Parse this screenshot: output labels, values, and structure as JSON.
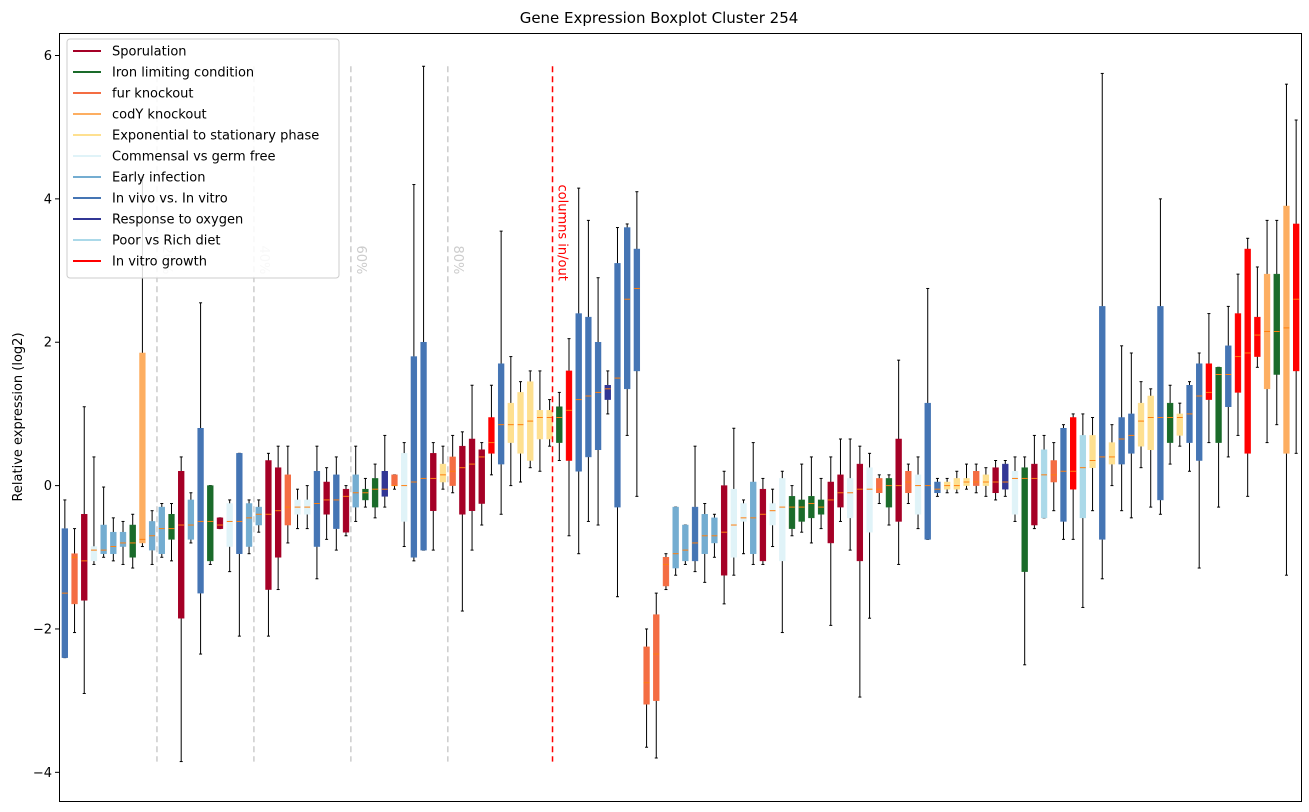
{
  "chart_data": {
    "type": "boxplot",
    "title": "Gene Expression Boxplot Cluster 254",
    "xlabel": "",
    "ylabel": "Relative expression (log2)",
    "ylim": [
      -4.4,
      6.3
    ],
    "yticks": [
      -4,
      -2,
      0,
      2,
      4,
      6
    ],
    "xticks_visible": false,
    "grid": false,
    "legend_placement": "top-left",
    "colors": {
      "median": "#ff7f0e",
      "whisker": "#000000",
      "guide": "#cccccc",
      "cut": "#ff0000"
    },
    "legend": [
      {
        "label": "Sporulation",
        "color": "#a50026"
      },
      {
        "label": "Iron limiting condition",
        "color": "#1a6b2a"
      },
      {
        "label": "fur knockout",
        "color": "#f46d43"
      },
      {
        "label": "codY knockout",
        "color": "#fdae61"
      },
      {
        "label": "Exponential to stationary phase",
        "color": "#fee090"
      },
      {
        "label": "Commensal vs germ free",
        "color": "#e0f3f8"
      },
      {
        "label": "Early infection",
        "color": "#74add1"
      },
      {
        "label": "In vivo vs. In vitro",
        "color": "#4575b4"
      },
      {
        "label": "Response to oxygen",
        "color": "#313695"
      },
      {
        "label": "Poor vs Rich diet",
        "color": "#abd9e9"
      },
      {
        "label": "In vitro growth",
        "color": "#ff0000"
      }
    ],
    "percentile_markers": [
      {
        "label": "20%",
        "position": 9.5
      },
      {
        "label": "40%",
        "position": 19.5
      },
      {
        "label": "60%",
        "position": 29.5
      },
      {
        "label": "80%",
        "position": 39.5
      }
    ],
    "cut_marker": {
      "label": "columns in/out",
      "position": 50.3
    },
    "boxes": [
      {
        "c": 7,
        "q1": -2.4,
        "med": -1.5,
        "q3": -0.6,
        "lo": -2.4,
        "hi": -0.2
      },
      {
        "c": 2,
        "q1": -1.65,
        "med": -1.0,
        "q3": -0.95,
        "lo": -2.05,
        "hi": -0.6
      },
      {
        "c": 0,
        "q1": -1.6,
        "med": -1.05,
        "q3": -0.4,
        "lo": -2.9,
        "hi": 1.1
      },
      {
        "c": 5,
        "q1": -1.05,
        "med": -0.9,
        "q3": -0.85,
        "lo": -1.1,
        "hi": 0.4
      },
      {
        "c": 6,
        "q1": -0.95,
        "med": -0.9,
        "q3": -0.55,
        "lo": -1.0,
        "hi": -0.02
      },
      {
        "c": 6,
        "q1": -0.95,
        "med": -0.85,
        "q3": -0.65,
        "lo": -1.05,
        "hi": -0.45
      },
      {
        "c": 6,
        "q1": -0.85,
        "med": -0.8,
        "q3": -0.65,
        "lo": -1.1,
        "hi": -0.5
      },
      {
        "c": 1,
        "q1": -1.0,
        "med": -0.8,
        "q3": -0.55,
        "lo": -1.15,
        "hi": -0.4
      },
      {
        "c": 3,
        "q1": -0.8,
        "med": -0.75,
        "q3": 1.85,
        "lo": -0.85,
        "hi": 4.3
      },
      {
        "c": 6,
        "q1": -0.9,
        "med": -0.7,
        "q3": -0.5,
        "lo": -1.1,
        "hi": -0.35
      },
      {
        "c": 6,
        "q1": -0.95,
        "med": -0.6,
        "q3": -0.3,
        "lo": -1.0,
        "hi": -0.25
      },
      {
        "c": 1,
        "q1": -0.75,
        "med": -0.6,
        "q3": -0.4,
        "lo": -1.05,
        "hi": -0.25
      },
      {
        "c": 0,
        "q1": -1.85,
        "med": -0.55,
        "q3": 0.2,
        "lo": -3.85,
        "hi": 0.4
      },
      {
        "c": 6,
        "q1": -0.75,
        "med": -0.55,
        "q3": -0.2,
        "lo": -0.8,
        "hi": -0.1
      },
      {
        "c": 7,
        "q1": -1.5,
        "med": -0.5,
        "q3": 0.8,
        "lo": -2.35,
        "hi": 2.55
      },
      {
        "c": 1,
        "q1": -1.05,
        "med": -0.5,
        "q3": -0.0,
        "lo": -1.1,
        "hi": 0.0
      },
      {
        "c": 0,
        "q1": -0.6,
        "med": -0.55,
        "q3": -0.45,
        "lo": -0.6,
        "hi": -0.45
      },
      {
        "c": 5,
        "q1": -0.85,
        "med": -0.5,
        "q3": -0.25,
        "lo": -1.2,
        "hi": -0.2
      },
      {
        "c": 7,
        "q1": -0.95,
        "med": -0.5,
        "q3": 0.45,
        "lo": -2.1,
        "hi": 0.45
      },
      {
        "c": 6,
        "q1": -0.85,
        "med": -0.45,
        "q3": -0.25,
        "lo": -0.95,
        "hi": -0.2
      },
      {
        "c": 6,
        "q1": -0.55,
        "med": -0.4,
        "q3": -0.3,
        "lo": -0.65,
        "hi": -0.2
      },
      {
        "c": 0,
        "q1": -1.45,
        "med": -0.4,
        "q3": 0.35,
        "lo": -2.1,
        "hi": 0.45
      },
      {
        "c": 0,
        "q1": -1.0,
        "med": -0.35,
        "q3": 0.25,
        "lo": -1.45,
        "hi": 0.55
      },
      {
        "c": 2,
        "q1": -0.55,
        "med": -0.3,
        "q3": 0.15,
        "lo": -0.8,
        "hi": 0.55
      },
      {
        "c": 5,
        "q1": -0.4,
        "med": -0.3,
        "q3": -0.2,
        "lo": -0.6,
        "hi": -0.05
      },
      {
        "c": 5,
        "q1": -0.4,
        "med": -0.3,
        "q3": -0.2,
        "lo": -0.6,
        "hi": 0.0
      },
      {
        "c": 7,
        "q1": -0.85,
        "med": -0.25,
        "q3": 0.2,
        "lo": -1.3,
        "hi": 0.55
      },
      {
        "c": 0,
        "q1": -0.4,
        "med": -0.2,
        "q3": 0.05,
        "lo": -0.75,
        "hi": 0.25
      },
      {
        "c": 7,
        "q1": -0.6,
        "med": -0.2,
        "q3": 0.15,
        "lo": -0.9,
        "hi": 0.4
      },
      {
        "c": 0,
        "q1": -0.65,
        "med": -0.15,
        "q3": -0.05,
        "lo": -0.7,
        "hi": 0.0
      },
      {
        "c": 6,
        "q1": -0.3,
        "med": -0.1,
        "q3": 0.15,
        "lo": -0.5,
        "hi": 0.55
      },
      {
        "c": 1,
        "q1": -0.2,
        "med": -0.1,
        "q3": -0.05,
        "lo": -0.3,
        "hi": 0.1
      },
      {
        "c": 1,
        "q1": -0.3,
        "med": -0.05,
        "q3": 0.1,
        "lo": -0.45,
        "hi": 0.3
      },
      {
        "c": 8,
        "q1": -0.15,
        "med": -0.05,
        "q3": 0.2,
        "lo": -0.3,
        "hi": 0.7
      },
      {
        "c": 2,
        "q1": -0.0,
        "med": 0.0,
        "q3": 0.15,
        "lo": -0.05,
        "hi": 0.15
      },
      {
        "c": 5,
        "q1": -0.5,
        "med": 0.0,
        "q3": 0.45,
        "lo": -0.85,
        "hi": 0.6
      },
      {
        "c": 7,
        "q1": -1.0,
        "med": 0.05,
        "q3": 1.8,
        "lo": -1.05,
        "hi": 4.2
      },
      {
        "c": 7,
        "q1": -0.9,
        "med": 0.1,
        "q3": 2.0,
        "lo": -0.9,
        "hi": 5.85
      },
      {
        "c": 0,
        "q1": -0.35,
        "med": 0.1,
        "q3": 0.45,
        "lo": -0.9,
        "hi": 0.6
      },
      {
        "c": 4,
        "q1": 0.05,
        "med": 0.15,
        "q3": 0.3,
        "lo": -0.05,
        "hi": 0.55
      },
      {
        "c": 2,
        "q1": 0.0,
        "med": 0.2,
        "q3": 0.4,
        "lo": -0.1,
        "hi": 0.7
      },
      {
        "c": 0,
        "q1": -0.4,
        "med": 0.25,
        "q3": 0.55,
        "lo": -1.75,
        "hi": 0.75
      },
      {
        "c": 0,
        "q1": -0.35,
        "med": 0.3,
        "q3": 0.65,
        "lo": -0.9,
        "hi": 1.4
      },
      {
        "c": 0,
        "q1": -0.25,
        "med": 0.4,
        "q3": 0.5,
        "lo": -0.55,
        "hi": 0.6
      },
      {
        "c": 10,
        "q1": 0.45,
        "med": 0.6,
        "q3": 0.95,
        "lo": 0.15,
        "hi": 1.4
      },
      {
        "c": 7,
        "q1": 0.3,
        "med": 0.85,
        "q3": 1.7,
        "lo": -0.4,
        "hi": 3.55
      },
      {
        "c": 4,
        "q1": 0.6,
        "med": 0.85,
        "q3": 1.15,
        "lo": 0.0,
        "hi": 1.8
      },
      {
        "c": 4,
        "q1": 0.45,
        "med": 0.85,
        "q3": 1.3,
        "lo": 0.05,
        "hi": 1.45
      },
      {
        "c": 4,
        "q1": 0.35,
        "med": 0.9,
        "q3": 1.45,
        "lo": 0.25,
        "hi": 1.6
      },
      {
        "c": 4,
        "q1": 0.65,
        "med": 0.95,
        "q3": 1.05,
        "lo": 0.2,
        "hi": 1.6
      },
      {
        "c": 4,
        "q1": 0.65,
        "med": 0.95,
        "q3": 1.05,
        "lo": 0.55,
        "hi": 1.2
      },
      {
        "c": 1,
        "q1": 0.6,
        "med": 0.95,
        "q3": 1.1,
        "lo": 0.35,
        "hi": 1.3
      },
      {
        "c": 10,
        "q1": 0.35,
        "med": 1.05,
        "q3": 1.6,
        "lo": -0.7,
        "hi": 2.05
      },
      {
        "c": 7,
        "q1": 0.2,
        "med": 1.2,
        "q3": 2.4,
        "lo": -0.95,
        "hi": 4.15
      },
      {
        "c": 7,
        "q1": 0.4,
        "med": 1.25,
        "q3": 2.35,
        "lo": -0.5,
        "hi": 3.7
      },
      {
        "c": 7,
        "q1": 0.5,
        "med": 1.3,
        "q3": 2.0,
        "lo": -0.55,
        "hi": 2.9
      },
      {
        "c": 8,
        "q1": 1.2,
        "med": 1.35,
        "q3": 1.4,
        "lo": 1.0,
        "hi": 1.6
      },
      {
        "c": 7,
        "q1": -0.3,
        "med": 1.5,
        "q3": 3.1,
        "lo": -1.55,
        "hi": 3.6
      },
      {
        "c": 7,
        "q1": 1.35,
        "med": 2.6,
        "q3": 3.6,
        "lo": 0.7,
        "hi": 3.65
      },
      {
        "c": 7,
        "q1": 1.6,
        "med": 2.75,
        "q3": 3.3,
        "lo": -0.15,
        "hi": 4.1
      },
      {
        "c": 2,
        "q1": -3.05,
        "med": -2.75,
        "q3": -2.25,
        "lo": -3.65,
        "hi": -2.0
      },
      {
        "c": 2,
        "q1": -3.0,
        "med": -2.35,
        "q3": -1.8,
        "lo": -3.8,
        "hi": -1.5
      },
      {
        "c": 2,
        "q1": -1.4,
        "med": -1.1,
        "q3": -1.0,
        "lo": -1.45,
        "hi": -0.95
      },
      {
        "c": 6,
        "q1": -1.15,
        "med": -0.95,
        "q3": -0.3,
        "lo": -1.25,
        "hi": -0.3
      },
      {
        "c": 6,
        "q1": -1.05,
        "med": -0.9,
        "q3": -0.55,
        "lo": -1.1,
        "hi": -0.55
      },
      {
        "c": 7,
        "q1": -1.05,
        "med": -0.8,
        "q3": -0.3,
        "lo": -1.2,
        "hi": 0.55
      },
      {
        "c": 6,
        "q1": -0.95,
        "med": -0.7,
        "q3": -0.4,
        "lo": -1.35,
        "hi": -0.25
      },
      {
        "c": 6,
        "q1": -0.8,
        "med": -0.7,
        "q3": -0.45,
        "lo": -1.0,
        "hi": -0.4
      },
      {
        "c": 0,
        "q1": -1.25,
        "med": -0.65,
        "q3": 0.0,
        "lo": -1.65,
        "hi": 0.2
      },
      {
        "c": 5,
        "q1": -1.0,
        "med": -0.55,
        "q3": -0.05,
        "lo": -1.25,
        "hi": 0.8
      },
      {
        "c": 5,
        "q1": -0.5,
        "med": -0.45,
        "q3": -0.25,
        "lo": -0.95,
        "hi": -0.2
      },
      {
        "c": 6,
        "q1": -0.95,
        "med": -0.45,
        "q3": 0.05,
        "lo": -1.1,
        "hi": 0.6
      },
      {
        "c": 0,
        "q1": -1.05,
        "med": -0.4,
        "q3": -0.05,
        "lo": -1.1,
        "hi": 0.1
      },
      {
        "c": 5,
        "q1": -0.55,
        "med": -0.35,
        "q3": -0.25,
        "lo": -0.85,
        "hi": -0.05
      },
      {
        "c": 5,
        "q1": -1.05,
        "med": -0.3,
        "q3": 0.1,
        "lo": -2.05,
        "hi": 0.2
      },
      {
        "c": 1,
        "q1": -0.6,
        "med": -0.3,
        "q3": -0.15,
        "lo": -0.7,
        "hi": 0.0
      },
      {
        "c": 1,
        "q1": -0.5,
        "med": -0.3,
        "q3": -0.2,
        "lo": -0.65,
        "hi": 0.3
      },
      {
        "c": 1,
        "q1": -0.45,
        "med": -0.25,
        "q3": -0.15,
        "lo": -0.8,
        "hi": 0.4
      },
      {
        "c": 1,
        "q1": -0.4,
        "med": -0.3,
        "q3": -0.2,
        "lo": -0.6,
        "hi": 0.1
      },
      {
        "c": 0,
        "q1": -0.8,
        "med": -0.2,
        "q3": 0.05,
        "lo": -1.95,
        "hi": 0.4
      },
      {
        "c": 0,
        "q1": -0.3,
        "med": -0.1,
        "q3": 0.15,
        "lo": -0.5,
        "hi": 0.65
      },
      {
        "c": 5,
        "q1": -0.45,
        "med": -0.1,
        "q3": 0.1,
        "lo": -0.9,
        "hi": 0.65
      },
      {
        "c": 0,
        "q1": -1.05,
        "med": -0.05,
        "q3": 0.3,
        "lo": -2.95,
        "hi": 0.55
      },
      {
        "c": 5,
        "q1": -0.65,
        "med": -0.05,
        "q3": 0.25,
        "lo": -1.85,
        "hi": 0.45
      },
      {
        "c": 2,
        "q1": -0.1,
        "med": -0.05,
        "q3": 0.1,
        "lo": -0.25,
        "hi": 0.15
      },
      {
        "c": 1,
        "q1": -0.3,
        "med": 0.0,
        "q3": 0.1,
        "lo": -0.55,
        "hi": 0.15
      },
      {
        "c": 0,
        "q1": -0.5,
        "med": 0.0,
        "q3": 0.65,
        "lo": -1.1,
        "hi": 1.75
      },
      {
        "c": 2,
        "q1": -0.1,
        "med": 0.05,
        "q3": 0.2,
        "lo": -0.25,
        "hi": 0.3
      },
      {
        "c": 5,
        "q1": -0.4,
        "med": 0.0,
        "q3": 0.15,
        "lo": -0.6,
        "hi": 0.4
      },
      {
        "c": 7,
        "q1": -0.75,
        "med": 0.0,
        "q3": 1.15,
        "lo": -0.75,
        "hi": 2.75
      },
      {
        "c": 7,
        "q1": -0.1,
        "med": -0.05,
        "q3": 0.05,
        "lo": -0.15,
        "hi": 0.1
      },
      {
        "c": 4,
        "q1": -0.05,
        "med": 0.0,
        "q3": 0.05,
        "lo": -0.1,
        "hi": 0.1
      },
      {
        "c": 4,
        "q1": -0.05,
        "med": 0.0,
        "q3": 0.1,
        "lo": -0.1,
        "hi": 0.2
      },
      {
        "c": 4,
        "q1": 0.0,
        "med": 0.05,
        "q3": 0.1,
        "lo": -0.05,
        "hi": 0.3
      },
      {
        "c": 2,
        "q1": 0.0,
        "med": 0.05,
        "q3": 0.2,
        "lo": -0.1,
        "hi": 0.3
      },
      {
        "c": 4,
        "q1": 0.0,
        "med": 0.05,
        "q3": 0.15,
        "lo": -0.15,
        "hi": 0.25
      },
      {
        "c": 0,
        "q1": -0.1,
        "med": 0.05,
        "q3": 0.25,
        "lo": -0.2,
        "hi": 0.35
      },
      {
        "c": 8,
        "q1": -0.05,
        "med": 0.05,
        "q3": 0.3,
        "lo": -0.15,
        "hi": 0.35
      },
      {
        "c": 5,
        "q1": -0.4,
        "med": 0.1,
        "q3": 0.2,
        "lo": -0.5,
        "hi": 0.4
      },
      {
        "c": 1,
        "q1": -1.2,
        "med": 0.1,
        "q3": 0.25,
        "lo": -2.5,
        "hi": 0.4
      },
      {
        "c": 0,
        "q1": -0.55,
        "med": 0.1,
        "q3": 0.3,
        "lo": -0.6,
        "hi": 0.7
      },
      {
        "c": 9,
        "q1": -0.45,
        "med": 0.15,
        "q3": 0.5,
        "lo": -0.45,
        "hi": 0.7
      },
      {
        "c": 2,
        "q1": 0.05,
        "med": 0.15,
        "q3": 0.35,
        "lo": -0.35,
        "hi": 0.6
      },
      {
        "c": 7,
        "q1": -0.5,
        "med": 0.2,
        "q3": 0.8,
        "lo": -0.75,
        "hi": 0.85
      },
      {
        "c": 10,
        "q1": -0.05,
        "med": 0.2,
        "q3": 0.95,
        "lo": -0.75,
        "hi": 1.0
      },
      {
        "c": 9,
        "q1": -0.45,
        "med": 0.25,
        "q3": 0.7,
        "lo": -1.7,
        "hi": 1.0
      },
      {
        "c": 4,
        "q1": 0.25,
        "med": 0.35,
        "q3": 0.7,
        "lo": -0.35,
        "hi": 0.95
      },
      {
        "c": 7,
        "q1": -0.75,
        "med": 0.4,
        "q3": 2.5,
        "lo": -1.3,
        "hi": 5.75
      },
      {
        "c": 4,
        "q1": 0.3,
        "med": 0.4,
        "q3": 0.6,
        "lo": 0.0,
        "hi": 0.85
      },
      {
        "c": 7,
        "q1": 0.3,
        "med": 0.65,
        "q3": 0.95,
        "lo": -0.35,
        "hi": 1.95
      },
      {
        "c": 7,
        "q1": 0.45,
        "med": 0.7,
        "q3": 1.0,
        "lo": -0.45,
        "hi": 1.85
      },
      {
        "c": 4,
        "q1": 0.55,
        "med": 0.9,
        "q3": 1.15,
        "lo": 0.25,
        "hi": 1.45
      },
      {
        "c": 4,
        "q1": 0.5,
        "med": 0.95,
        "q3": 1.25,
        "lo": -0.3,
        "hi": 1.35
      },
      {
        "c": 7,
        "q1": -0.2,
        "med": 0.95,
        "q3": 2.5,
        "lo": -0.4,
        "hi": 4.0
      },
      {
        "c": 1,
        "q1": 0.6,
        "med": 0.95,
        "q3": 1.15,
        "lo": 0.3,
        "hi": 1.4
      },
      {
        "c": 4,
        "q1": 0.7,
        "med": 0.95,
        "q3": 1.0,
        "lo": 0.55,
        "hi": 1.15
      },
      {
        "c": 7,
        "q1": 0.6,
        "med": 1.0,
        "q3": 1.4,
        "lo": 0.2,
        "hi": 1.45
      },
      {
        "c": 7,
        "q1": 0.35,
        "med": 1.25,
        "q3": 1.7,
        "lo": -1.15,
        "hi": 1.85
      },
      {
        "c": 10,
        "q1": 1.2,
        "med": 1.3,
        "q3": 1.7,
        "lo": 0.6,
        "hi": 2.4
      },
      {
        "c": 1,
        "q1": 0.6,
        "med": 1.55,
        "q3": 1.65,
        "lo": -0.3,
        "hi": 1.65
      },
      {
        "c": 7,
        "q1": 1.1,
        "med": 1.55,
        "q3": 1.95,
        "lo": 0.4,
        "hi": 2.5
      },
      {
        "c": 10,
        "q1": 1.3,
        "med": 1.8,
        "q3": 2.4,
        "lo": 0.7,
        "hi": 2.95
      },
      {
        "c": 10,
        "q1": 0.45,
        "med": 1.85,
        "q3": 3.3,
        "lo": -0.15,
        "hi": 3.45
      },
      {
        "c": 10,
        "q1": 1.8,
        "med": 2.1,
        "q3": 2.35,
        "lo": 1.65,
        "hi": 3.05
      },
      {
        "c": 3,
        "q1": 1.35,
        "med": 2.15,
        "q3": 2.95,
        "lo": 0.6,
        "hi": 3.7
      },
      {
        "c": 1,
        "q1": 1.55,
        "med": 2.15,
        "q3": 2.95,
        "lo": 0.85,
        "hi": 3.7
      },
      {
        "c": 3,
        "q1": 0.45,
        "med": 2.2,
        "q3": 3.9,
        "lo": -1.25,
        "hi": 5.6
      },
      {
        "c": 10,
        "q1": 1.6,
        "med": 2.6,
        "q3": 3.65,
        "lo": 0.45,
        "hi": 5.1
      }
    ]
  }
}
